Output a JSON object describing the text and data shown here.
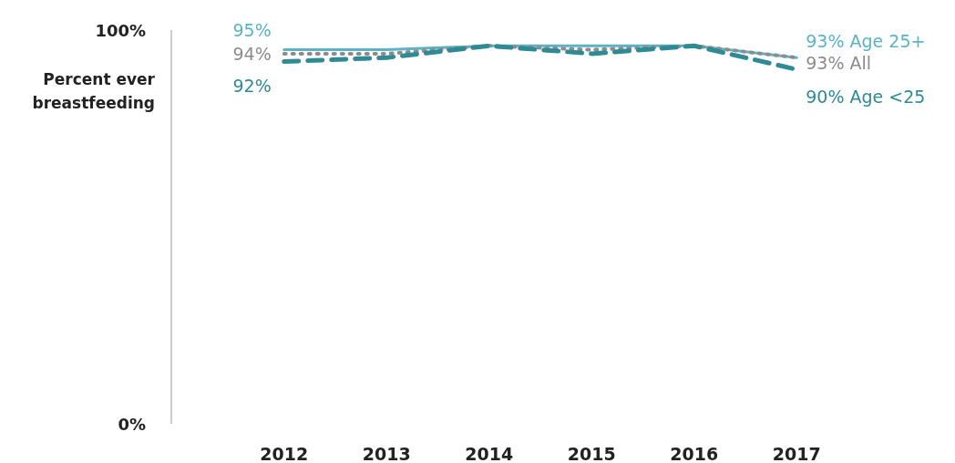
{
  "chart_data": {
    "type": "line",
    "ylabel": "Percent ever breastfeeding",
    "categories": [
      "2012",
      "2013",
      "2014",
      "2015",
      "2016",
      "2017"
    ],
    "ylim": [
      0,
      100
    ],
    "yticks": [
      {
        "value": 0,
        "label": "0%"
      },
      {
        "value": 100,
        "label": "100%"
      }
    ],
    "grid": false,
    "marker": "none",
    "series": [
      {
        "name": "Age 25+",
        "color": "#5ab4c5",
        "line_style": "solid",
        "values": [
          95,
          95,
          96,
          96,
          96,
          93
        ],
        "value_labels": [
          "95%",
          null,
          null,
          null,
          null,
          "93%"
        ]
      },
      {
        "name": "All",
        "color": "#8c8c8c",
        "line_style": "dotted",
        "values": [
          94,
          94,
          96,
          95,
          96,
          93
        ],
        "value_labels": [
          "94%",
          null,
          null,
          null,
          null,
          "93%"
        ]
      },
      {
        "name": "Age <25",
        "color": "#2e8a94",
        "line_style": "dashed",
        "values": [
          92,
          93,
          96,
          94,
          96,
          90
        ],
        "value_labels": [
          "92%",
          null,
          null,
          null,
          null,
          "90%"
        ]
      }
    ]
  }
}
